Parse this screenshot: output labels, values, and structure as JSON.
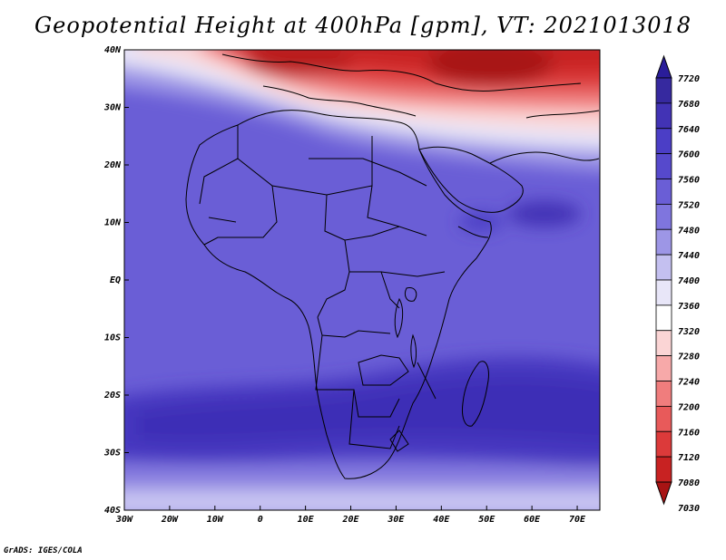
{
  "title": "Geopotential Height at 400hPa [gpm], VT: 2021013018",
  "credit": "GrADS: IGES/COLA",
  "map": {
    "lon_labels": [
      "30W",
      "20W",
      "10W",
      "0",
      "10E",
      "20E",
      "30E",
      "40E",
      "50E",
      "60E",
      "70E"
    ],
    "lat_labels": [
      "40N",
      "30N",
      "20N",
      "10N",
      "EQ",
      "10S",
      "20S",
      "30S",
      "40S"
    ]
  },
  "colorbar": {
    "labels": [
      "7720",
      "7680",
      "7640",
      "7600",
      "7560",
      "7520",
      "7480",
      "7440",
      "7400",
      "7360",
      "7320",
      "7280",
      "7240",
      "7200",
      "7160",
      "7120",
      "7080",
      "7030"
    ],
    "colors": [
      "#2a1d9a",
      "#36299f",
      "#4233b5",
      "#4b3ec6",
      "#5649cc",
      "#6a5ed6",
      "#7f75de",
      "#9d96e6",
      "#c4c0f0",
      "#e8e6f8",
      "#ffffff",
      "#fbd5d5",
      "#f7a9a9",
      "#f07d7d",
      "#e85a5a",
      "#dc3a3a",
      "#c82222",
      "#a81414"
    ]
  }
}
